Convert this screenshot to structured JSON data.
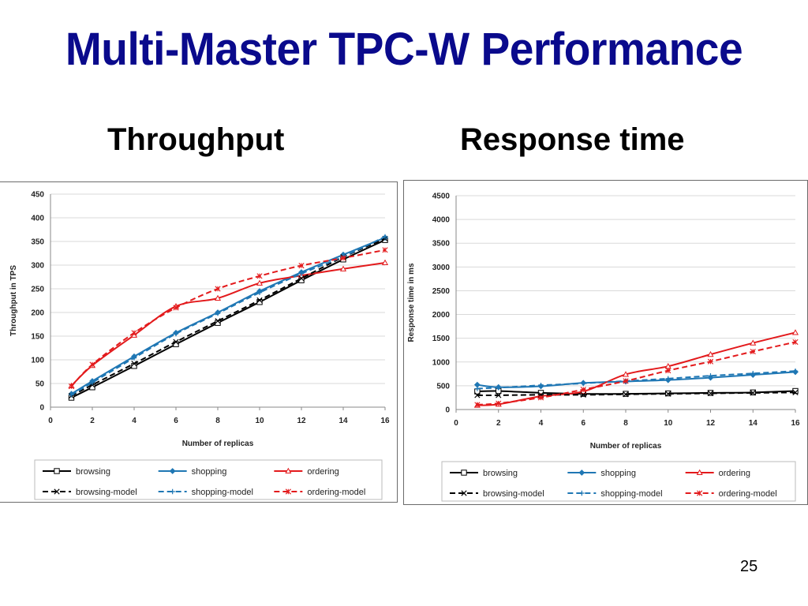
{
  "slide": {
    "title": "Multi-Master TPC-W Performance",
    "left_heading": "Throughput",
    "right_heading": "Response time",
    "page_number": "25"
  },
  "chart_data": [
    {
      "type": "line",
      "title": "",
      "xlabel": "Number of replicas",
      "ylabel": "Throughput in TPS",
      "xlim": [
        0,
        16
      ],
      "ylim": [
        0,
        450
      ],
      "xticks": [
        0,
        2,
        4,
        6,
        8,
        10,
        12,
        14,
        16
      ],
      "yticks": [
        0,
        50,
        100,
        150,
        200,
        250,
        300,
        350,
        400,
        450
      ],
      "grid": "horizontal",
      "legend_position": "bottom",
      "x": [
        1,
        2,
        4,
        6,
        8,
        10,
        12,
        14,
        16
      ],
      "series": [
        {
          "name": "browsing",
          "color": "#000000",
          "dash": "solid",
          "marker": "square",
          "values": [
            20,
            42,
            87,
            133,
            178,
            222,
            268,
            312,
            353
          ]
        },
        {
          "name": "shopping",
          "color": "#1f77b4",
          "dash": "solid",
          "marker": "diamond",
          "values": [
            28,
            55,
            107,
            157,
            200,
            245,
            285,
            322,
            358
          ]
        },
        {
          "name": "ordering",
          "color": "#e31a1c",
          "dash": "solid",
          "marker": "triangle",
          "values": [
            45,
            88,
            152,
            213,
            230,
            262,
            278,
            292,
            305
          ]
        },
        {
          "name": "browsing-model",
          "color": "#000000",
          "dash": "dashed",
          "marker": "x",
          "values": [
            24,
            47,
            92,
            138,
            182,
            226,
            272,
            317,
            356
          ]
        },
        {
          "name": "shopping-model",
          "color": "#1f77b4",
          "dash": "dashed",
          "marker": "plus",
          "values": [
            26,
            52,
            104,
            155,
            198,
            242,
            282,
            318,
            360
          ]
        },
        {
          "name": "ordering-model",
          "color": "#e31a1c",
          "dash": "dashed",
          "marker": "star",
          "values": [
            44,
            90,
            157,
            210,
            250,
            277,
            299,
            315,
            332
          ]
        }
      ]
    },
    {
      "type": "line",
      "title": "",
      "xlabel": "Number of replicas",
      "ylabel": "Response time in ms",
      "xlim": [
        0,
        16
      ],
      "ylim": [
        0,
        4500
      ],
      "xticks": [
        0,
        2,
        4,
        6,
        8,
        10,
        12,
        14,
        16
      ],
      "yticks": [
        0,
        500,
        1000,
        1500,
        2000,
        2500,
        3000,
        3500,
        4000,
        4500
      ],
      "grid": "horizontal",
      "legend_position": "bottom",
      "x": [
        1,
        2,
        4,
        6,
        8,
        10,
        12,
        14,
        16
      ],
      "series": [
        {
          "name": "browsing",
          "color": "#000000",
          "dash": "solid",
          "marker": "square",
          "values": [
            380,
            390,
            350,
            330,
            330,
            340,
            350,
            360,
            390
          ]
        },
        {
          "name": "shopping",
          "color": "#1f77b4",
          "dash": "solid",
          "marker": "diamond",
          "values": [
            520,
            470,
            490,
            560,
            590,
            620,
            670,
            730,
            790
          ]
        },
        {
          "name": "ordering",
          "color": "#e31a1c",
          "dash": "solid",
          "marker": "triangle",
          "values": [
            90,
            110,
            280,
            380,
            740,
            910,
            1160,
            1400,
            1620
          ]
        },
        {
          "name": "browsing-model",
          "color": "#000000",
          "dash": "dashed",
          "marker": "x",
          "values": [
            300,
            300,
            310,
            310,
            320,
            330,
            340,
            350,
            360
          ]
        },
        {
          "name": "shopping-model",
          "color": "#1f77b4",
          "dash": "dashed",
          "marker": "plus",
          "values": [
            440,
            460,
            510,
            550,
            600,
            650,
            710,
            760,
            810
          ]
        },
        {
          "name": "ordering-model",
          "color": "#e31a1c",
          "dash": "dashed",
          "marker": "star",
          "values": [
            100,
            130,
            250,
            420,
            600,
            820,
            1010,
            1220,
            1420
          ]
        }
      ]
    }
  ]
}
